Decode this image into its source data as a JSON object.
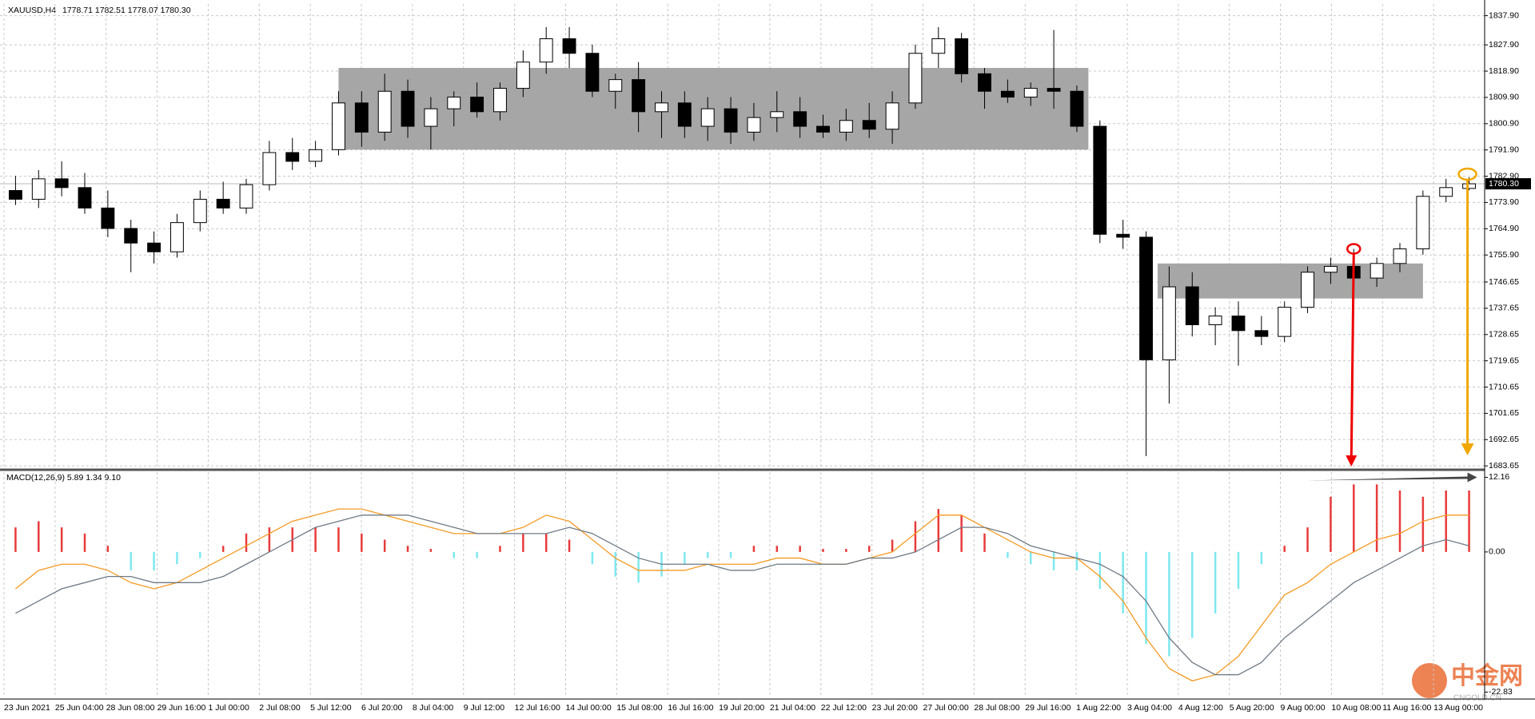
{
  "chart_data": [
    {
      "type": "candlestick",
      "title": "XAUUSD,H4",
      "header_values": "1778.71 1782.51 1778.07 1780.30",
      "open": [
        1778,
        1775,
        1782,
        1779,
        1772,
        1765,
        1760,
        1757,
        1767,
        1775,
        1772,
        1780,
        1791,
        1788,
        1792,
        1808,
        1798,
        1812,
        1800,
        1806,
        1810,
        1805,
        1813,
        1822,
        1830,
        1825,
        1812,
        1816,
        1805,
        1808,
        1800,
        1806,
        1798,
        1803,
        1805,
        1800,
        1798,
        1802,
        1799,
        1808,
        1825,
        1830,
        1818,
        1812,
        1810,
        1813,
        1812,
        1800,
        1763,
        1762,
        1720,
        1745,
        1732,
        1735,
        1730,
        1728,
        1738,
        1750,
        1752,
        1748,
        1753,
        1758,
        1776,
        1778.71
      ],
      "high": [
        1783,
        1785,
        1788,
        1784,
        1778,
        1768,
        1764,
        1770,
        1778,
        1781,
        1782,
        1795,
        1796,
        1795,
        1812,
        1812,
        1818,
        1816,
        1810,
        1812,
        1815,
        1815,
        1826,
        1834,
        1834,
        1828,
        1818,
        1822,
        1812,
        1812,
        1810,
        1810,
        1808,
        1812,
        1810,
        1804,
        1806,
        1808,
        1812,
        1828,
        1834,
        1832,
        1820,
        1816,
        1815,
        1833,
        1814,
        1802,
        1768,
        1764,
        1752,
        1750,
        1738,
        1740,
        1735,
        1740,
        1752,
        1755,
        1758,
        1755,
        1760,
        1778,
        1782,
        1782.51
      ],
      "low": [
        1773,
        1772,
        1776,
        1770,
        1762,
        1750,
        1753,
        1755,
        1764,
        1770,
        1770,
        1778,
        1785,
        1786,
        1790,
        1793,
        1795,
        1796,
        1792,
        1800,
        1803,
        1802,
        1810,
        1818,
        1820,
        1810,
        1806,
        1798,
        1796,
        1796,
        1795,
        1794,
        1795,
        1798,
        1796,
        1796,
        1795,
        1796,
        1794,
        1806,
        1820,
        1815,
        1806,
        1808,
        1807,
        1806,
        1798,
        1760,
        1758,
        1687,
        1705,
        1728,
        1725,
        1718,
        1725,
        1726,
        1736,
        1746,
        1742,
        1745,
        1750,
        1756,
        1774,
        1778.07
      ],
      "close": [
        1775,
        1782,
        1779,
        1772,
        1765,
        1760,
        1757,
        1767,
        1775,
        1772,
        1780,
        1791,
        1788,
        1792,
        1808,
        1798,
        1812,
        1800,
        1806,
        1810,
        1805,
        1813,
        1822,
        1830,
        1825,
        1812,
        1816,
        1805,
        1808,
        1800,
        1806,
        1798,
        1803,
        1805,
        1800,
        1798,
        1802,
        1799,
        1808,
        1825,
        1830,
        1818,
        1812,
        1810,
        1813,
        1812,
        1800,
        1763,
        1762,
        1720,
        1745,
        1732,
        1735,
        1730,
        1728,
        1738,
        1750,
        1752,
        1748,
        1753,
        1758,
        1776,
        1779,
        1780.3
      ],
      "up_color": "#ffffff",
      "down_color": "#000000",
      "zones": [
        {
          "low": 1792,
          "high": 1820
        },
        {
          "low": 1741,
          "high": 1753
        }
      ],
      "last_price": {
        "value": 1780.3,
        "label": "1780.30"
      },
      "ylim": [
        1682.6,
        1841.9
      ],
      "yticks": [
        {
          "value": 1837.9,
          "label": "1837.90"
        },
        {
          "value": 1827.9,
          "label": "1827.90"
        },
        {
          "value": 1818.9,
          "label": "1818.90"
        },
        {
          "value": 1809.9,
          "label": "1809.90"
        },
        {
          "value": 1800.9,
          "label": "1800.90"
        },
        {
          "value": 1791.9,
          "label": "1791.90"
        },
        {
          "value": 1782.9,
          "label": "1782.90"
        },
        {
          "value": 1773.9,
          "label": "1773.90"
        },
        {
          "value": 1764.9,
          "label": "1764.90"
        },
        {
          "value": 1755.9,
          "label": "1755.90"
        },
        1746.65,
        1737.65,
        1728.65,
        1719.65,
        1710.65,
        1701.65,
        1692.65,
        1683.65
      ],
      "x_labels": [
        "23 Jun 2021",
        "25 Jun 04:00",
        "28 Jun 08:00",
        "29 Jun 16:00",
        "1 Jul 00:00",
        "2 Jul 08:00",
        "5 Jul 12:00",
        "6 Jul 20:00",
        "8 Jul 04:00",
        "9 Jul 12:00",
        "12 Jul 16:00",
        "14 Jul 00:00",
        "15 Jul 08:00",
        "16 Jul 16:00",
        "19 Jul 20:00",
        "21 Jul 04:00",
        "22 Jul 12:00",
        "23 Jul 20:00",
        "27 Jul 00:00",
        "28 Jul 08:00",
        "29 Jul 16:00",
        "1 Aug 22:00",
        "3 Aug 04:00",
        "4 Aug 12:00",
        "5 Aug 20:00",
        "9 Aug 00:00",
        "10 Aug 08:00",
        "11 Aug 16:00",
        "13 Aug 00:00"
      ],
      "grid": true
    },
    {
      "type": "macd",
      "title": "MACD(12,26,9) 5.89 1.34 9.10",
      "histogram": {
        "pos_color": "#e83b3b",
        "neg_color": "#7fe8f0",
        "values": [
          4,
          5,
          4,
          3,
          1,
          -3,
          -3,
          -2,
          -1,
          1,
          3,
          4,
          4,
          4,
          4,
          3,
          2,
          1,
          0.5,
          -1,
          -1,
          1,
          3,
          3,
          2,
          -2,
          -4,
          -5,
          -4,
          -2,
          -1,
          -1,
          1,
          1,
          1,
          0.5,
          0.5,
          1,
          2,
          5,
          7,
          6,
          3,
          -1,
          -2,
          -3,
          -3,
          -6,
          -10,
          -15,
          -17,
          -14,
          -10,
          -6,
          -2,
          1,
          4,
          9,
          11,
          11,
          10,
          9,
          10,
          10
        ]
      },
      "series": [
        {
          "color": "#f59a23",
          "values": [
            -6,
            -3,
            -2,
            -2,
            -3,
            -5,
            -6,
            -5,
            -3,
            -1,
            1,
            3,
            5,
            6,
            7,
            7,
            6,
            5,
            4,
            3,
            3,
            3,
            4,
            6,
            5,
            2,
            -1,
            -3,
            -3,
            -3,
            -2,
            -2,
            -2,
            -1,
            -1,
            -2,
            -2,
            -1,
            0,
            3,
            6,
            6,
            4,
            2,
            0,
            -1,
            -1,
            -4,
            -8,
            -14,
            -19,
            -21,
            -20,
            -17,
            -12,
            -7,
            -5,
            -2,
            0,
            2,
            3,
            5,
            6,
            6
          ]
        },
        {
          "color": "#6f7a86",
          "values": [
            -10,
            -8,
            -6,
            -5,
            -4,
            -4,
            -5,
            -5,
            -5,
            -4,
            -2,
            0,
            2,
            4,
            5,
            6,
            6,
            6,
            5,
            4,
            3,
            3,
            3,
            3,
            4,
            3,
            1,
            -1,
            -2,
            -2,
            -2,
            -3,
            -3,
            -2,
            -2,
            -2,
            -2,
            -1,
            -1,
            0,
            2,
            4,
            4,
            3,
            1,
            0,
            -1,
            -2,
            -4,
            -8,
            -14,
            -18,
            -20,
            -20,
            -18,
            -14,
            -11,
            -8,
            -5,
            -3,
            -1,
            1,
            2,
            1
          ]
        }
      ],
      "ylim": [
        -23.7,
        13.0
      ],
      "yticks": [
        12.16,
        {
          "value": 0,
          "label": "0.00"
        },
        -22.83
      ],
      "grid": true
    }
  ],
  "watermark": {
    "name": "中金网",
    "site": "CNGOLD.CN"
  }
}
